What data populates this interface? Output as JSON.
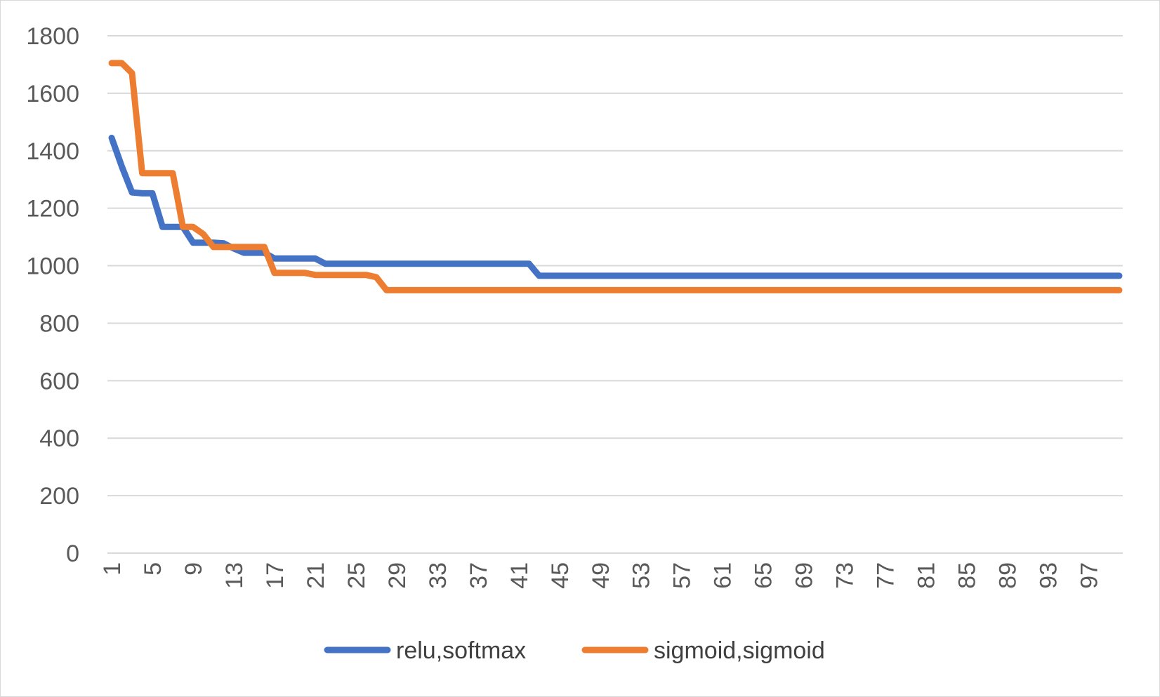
{
  "chart_data": {
    "type": "line",
    "title": "",
    "xlabel": "",
    "ylabel": "",
    "x": [
      1,
      2,
      3,
      4,
      5,
      6,
      7,
      8,
      9,
      10,
      11,
      12,
      13,
      14,
      15,
      16,
      17,
      18,
      19,
      20,
      21,
      22,
      23,
      24,
      25,
      26,
      27,
      28,
      29,
      30,
      31,
      32,
      33,
      34,
      35,
      36,
      37,
      38,
      39,
      40,
      41,
      42,
      43,
      44,
      45,
      46,
      47,
      48,
      49,
      50,
      51,
      52,
      53,
      54,
      55,
      56,
      57,
      58,
      59,
      60,
      61,
      62,
      63,
      64,
      65,
      66,
      67,
      68,
      69,
      70,
      71,
      72,
      73,
      74,
      75,
      76,
      77,
      78,
      79,
      80,
      81,
      82,
      83,
      84,
      85,
      86,
      87,
      88,
      89,
      90,
      91,
      92,
      93,
      94,
      95,
      96,
      97,
      98,
      99,
      100
    ],
    "x_tick_labels": [
      "1",
      "5",
      "9",
      "13",
      "17",
      "21",
      "25",
      "29",
      "33",
      "37",
      "41",
      "45",
      "49",
      "53",
      "57",
      "61",
      "65",
      "69",
      "73",
      "77",
      "81",
      "85",
      "89",
      "93",
      "97"
    ],
    "y_tick_labels": [
      "0",
      "200",
      "400",
      "600",
      "800",
      "1000",
      "1200",
      "1400",
      "1600",
      "1800"
    ],
    "ylim": [
      0,
      1800
    ],
    "grid": true,
    "legend_position": "bottom",
    "series": [
      {
        "name": "relu,softmax",
        "color": "#4472c4",
        "values": [
          1445,
          1345,
          1255,
          1252,
          1252,
          1135,
          1135,
          1135,
          1080,
          1080,
          1080,
          1078,
          1060,
          1045,
          1045,
          1045,
          1025,
          1025,
          1025,
          1025,
          1025,
          1007,
          1007,
          1007,
          1007,
          1007,
          1007,
          1007,
          1007,
          1007,
          1007,
          1007,
          1007,
          1007,
          1007,
          1007,
          1007,
          1007,
          1007,
          1007,
          1007,
          1007,
          965,
          965,
          965,
          965,
          965,
          965,
          965,
          965,
          965,
          965,
          965,
          965,
          965,
          965,
          965,
          965,
          965,
          965,
          965,
          965,
          965,
          965,
          965,
          965,
          965,
          965,
          965,
          965,
          965,
          965,
          965,
          965,
          965,
          965,
          965,
          965,
          965,
          965,
          965,
          965,
          965,
          965,
          965,
          965,
          965,
          965,
          965,
          965,
          965,
          965,
          965,
          965,
          965,
          965,
          965,
          965,
          965,
          965
        ]
      },
      {
        "name": "sigmoid,sigmoid",
        "color": "#ed7d31",
        "values": [
          1705,
          1705,
          1670,
          1322,
          1322,
          1322,
          1322,
          1135,
          1135,
          1110,
          1065,
          1065,
          1065,
          1065,
          1065,
          1065,
          975,
          975,
          975,
          975,
          968,
          968,
          968,
          968,
          968,
          968,
          960,
          915,
          915,
          915,
          915,
          915,
          915,
          915,
          915,
          915,
          915,
          915,
          915,
          915,
          915,
          915,
          915,
          915,
          915,
          915,
          915,
          915,
          915,
          915,
          915,
          915,
          915,
          915,
          915,
          915,
          915,
          915,
          915,
          915,
          915,
          915,
          915,
          915,
          915,
          915,
          915,
          915,
          915,
          915,
          915,
          915,
          915,
          915,
          915,
          915,
          915,
          915,
          915,
          915,
          915,
          915,
          915,
          915,
          915,
          915,
          915,
          915,
          915,
          915,
          915,
          915,
          915,
          915,
          915,
          915,
          915,
          915,
          915,
          915
        ]
      }
    ]
  }
}
